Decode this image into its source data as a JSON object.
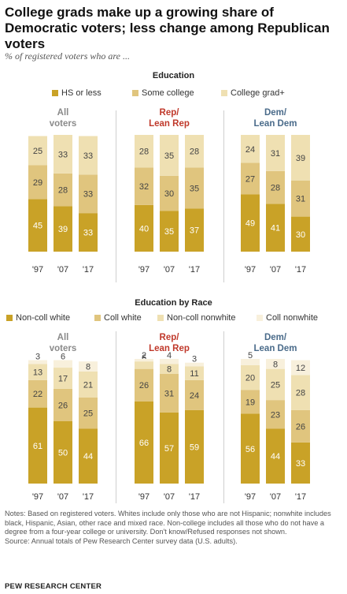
{
  "title": "College grads make up a growing share of Democratic voters; less change among Republican voters",
  "subtitle": "% of registered voters who are ...",
  "colors": {
    "dark_gold": "#c9a227",
    "mid_gold": "#e0c57e",
    "light_gold": "#efe0b2",
    "pale": "#f8f0dc",
    "rep_label": "#c0392b",
    "dem_label": "#4a6b8a",
    "all_label": "#8a8a8a"
  },
  "chart_data": [
    {
      "type": "bar",
      "stacked": true,
      "title": "Education",
      "categories": [
        "'97",
        "'07",
        "'17"
      ],
      "series_names": [
        "HS or less",
        "Some college",
        "College grad+"
      ],
      "panels": [
        {
          "label": "All voters",
          "values": [
            [
              45,
              29,
              25
            ],
            [
              39,
              28,
              33
            ],
            [
              33,
              33,
              33
            ]
          ]
        },
        {
          "label": "Rep/ Lean Rep",
          "values": [
            [
              40,
              32,
              28
            ],
            [
              35,
              30,
              35
            ],
            [
              37,
              35,
              28
            ]
          ]
        },
        {
          "label": "Dem/ Lean Dem",
          "values": [
            [
              49,
              27,
              24
            ],
            [
              41,
              28,
              31
            ],
            [
              30,
              31,
              39
            ]
          ]
        }
      ]
    },
    {
      "type": "bar",
      "stacked": true,
      "title": "Education by Race",
      "categories": [
        "'97",
        "'07",
        "'17"
      ],
      "series_names": [
        "Non-coll white",
        "Coll white",
        "Non-coll nonwhite",
        "Coll nonwhite"
      ],
      "panels": [
        {
          "label": "All voters",
          "values": [
            [
              61,
              22,
              13,
              3
            ],
            [
              50,
              26,
              17,
              6
            ],
            [
              44,
              25,
              21,
              8
            ]
          ]
        },
        {
          "label": "Rep/ Lean Rep",
          "values": [
            [
              66,
              26,
              6,
              2
            ],
            [
              57,
              31,
              8,
              4
            ],
            [
              59,
              24,
              11,
              3
            ]
          ]
        },
        {
          "label": "Dem/ Lean Dem",
          "values": [
            [
              56,
              19,
              20,
              5
            ],
            [
              44,
              23,
              25,
              8
            ],
            [
              33,
              26,
              28,
              12
            ]
          ]
        }
      ]
    }
  ],
  "notes": {
    "line1": "Notes: Based on registered voters. Whites include only those who are not Hispanic; nonwhite includes black, Hispanic, Asian, other race and mixed race. Non-college includes all those who do not have a degree from a four-year college or university. Don't know/Refused responses not shown.",
    "line2": "Source: Annual totals of Pew Research Center survey data (U.S. adults)."
  },
  "org": "PEW RESEARCH CENTER"
}
